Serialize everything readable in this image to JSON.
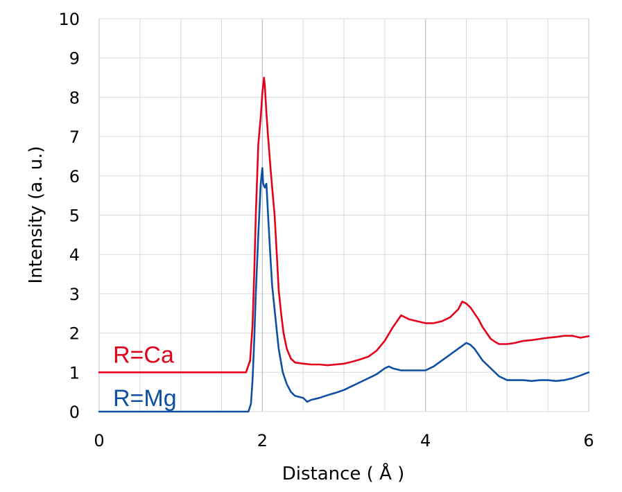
{
  "chart_data": {
    "type": "line",
    "title": "",
    "xlabel": "Distance ( Å )",
    "ylabel": "Intensity (a. u.)",
    "xlim": [
      0,
      6
    ],
    "ylim": [
      0,
      10
    ],
    "x_ticks": [
      0,
      2,
      4,
      6
    ],
    "y_ticks": [
      0,
      1,
      2,
      3,
      4,
      5,
      6,
      7,
      8,
      9,
      10
    ],
    "grid": true,
    "x_minor_step": 0.5,
    "y_minor_step": 1,
    "grid_color": "#d9d9d9",
    "series": [
      {
        "name": "R=Ca",
        "color": "#e3001b",
        "x": [
          0,
          1.8,
          1.85,
          1.88,
          1.9,
          1.92,
          1.95,
          1.98,
          2.0,
          2.02,
          2.03,
          2.05,
          2.07,
          2.1,
          2.12,
          2.15,
          2.18,
          2.2,
          2.23,
          2.26,
          2.3,
          2.35,
          2.4,
          2.5,
          2.6,
          2.7,
          2.8,
          2.9,
          3.0,
          3.1,
          3.2,
          3.3,
          3.4,
          3.5,
          3.6,
          3.7,
          3.75,
          3.8,
          3.9,
          4.0,
          4.1,
          4.2,
          4.3,
          4.4,
          4.45,
          4.5,
          4.55,
          4.6,
          4.65,
          4.7,
          4.75,
          4.8,
          4.85,
          4.9,
          5.0,
          5.1,
          5.2,
          5.3,
          5.4,
          5.5,
          5.6,
          5.7,
          5.8,
          5.9,
          6.0
        ],
        "y": [
          1.0,
          1.0,
          1.3,
          2.2,
          3.5,
          5.0,
          6.8,
          7.5,
          8.1,
          8.5,
          8.3,
          7.6,
          7.0,
          6.2,
          5.7,
          5.0,
          3.9,
          3.1,
          2.5,
          2.0,
          1.6,
          1.35,
          1.25,
          1.22,
          1.2,
          1.2,
          1.18,
          1.2,
          1.22,
          1.27,
          1.33,
          1.4,
          1.55,
          1.8,
          2.15,
          2.45,
          2.4,
          2.35,
          2.3,
          2.25,
          2.25,
          2.3,
          2.4,
          2.6,
          2.8,
          2.75,
          2.65,
          2.5,
          2.35,
          2.15,
          2.0,
          1.85,
          1.78,
          1.72,
          1.72,
          1.75,
          1.8,
          1.82,
          1.85,
          1.88,
          1.9,
          1.93,
          1.93,
          1.88,
          1.92
        ]
      },
      {
        "name": "R=Mg",
        "color": "#0d4fa0",
        "x": [
          0,
          1.83,
          1.86,
          1.88,
          1.9,
          1.92,
          1.95,
          1.98,
          2.0,
          2.01,
          2.03,
          2.05,
          2.07,
          2.1,
          2.12,
          2.15,
          2.18,
          2.2,
          2.25,
          2.3,
          2.35,
          2.4,
          2.5,
          2.55,
          2.6,
          2.7,
          2.8,
          2.9,
          3.0,
          3.1,
          3.2,
          3.3,
          3.4,
          3.5,
          3.55,
          3.6,
          3.7,
          3.8,
          3.9,
          4.0,
          4.1,
          4.2,
          4.3,
          4.4,
          4.5,
          4.55,
          4.6,
          4.7,
          4.8,
          4.9,
          5.0,
          5.1,
          5.2,
          5.3,
          5.4,
          5.5,
          5.6,
          5.7,
          5.8,
          5.9,
          6.0
        ],
        "y": [
          0.0,
          0.0,
          0.2,
          0.8,
          1.8,
          3.0,
          4.5,
          5.8,
          6.2,
          5.8,
          5.7,
          5.8,
          5.0,
          3.9,
          3.2,
          2.6,
          2.0,
          1.6,
          1.0,
          0.7,
          0.5,
          0.4,
          0.35,
          0.25,
          0.3,
          0.35,
          0.42,
          0.48,
          0.55,
          0.65,
          0.75,
          0.85,
          0.95,
          1.1,
          1.15,
          1.1,
          1.05,
          1.05,
          1.05,
          1.05,
          1.15,
          1.3,
          1.45,
          1.6,
          1.75,
          1.7,
          1.6,
          1.3,
          1.1,
          0.9,
          0.8,
          0.8,
          0.8,
          0.78,
          0.8,
          0.8,
          0.78,
          0.8,
          0.85,
          0.92,
          1.0
        ]
      }
    ]
  }
}
